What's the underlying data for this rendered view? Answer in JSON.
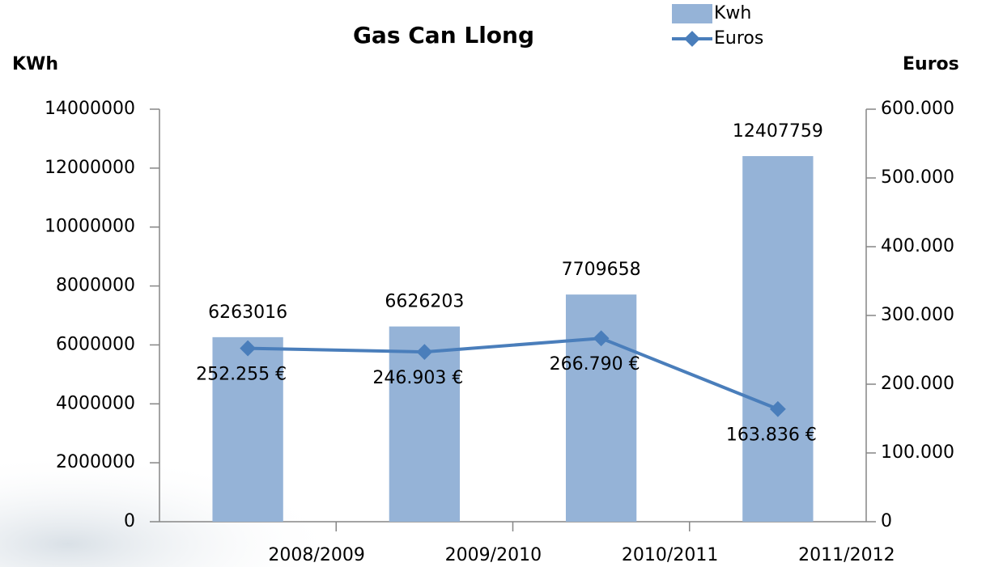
{
  "chart_data": {
    "type": "bar-line",
    "title": "Gas Can Llong",
    "y_label": "KWh",
    "y2_label": "Euros",
    "categories": [
      "2008/2009",
      "2009/2010",
      "2010/2011",
      "2011/2012"
    ],
    "series": [
      {
        "name": "Kwh",
        "type": "bar",
        "color": "#95b3d7",
        "values": [
          6263016,
          6626203,
          7709658,
          12407759
        ]
      },
      {
        "name": "Euros",
        "type": "line",
        "axis": "y2",
        "color": "#4a7ebb",
        "values": [
          252255,
          246903,
          266790,
          163836
        ],
        "value_labels": [
          "252.255 €",
          "246.903 €",
          "266.790 €",
          "163.836 €"
        ]
      }
    ],
    "ylim": [
      0,
      14000000
    ],
    "yticks": [
      0,
      2000000,
      4000000,
      6000000,
      8000000,
      10000000,
      12000000,
      14000000
    ],
    "y2lim": [
      0,
      600000
    ],
    "y2ticks": [
      0,
      {
        "value": 100000,
        "label": "100.000"
      },
      {
        "value": 200000,
        "label": "200.000"
      },
      {
        "value": 300000,
        "label": "300.000"
      },
      {
        "value": 400000,
        "label": "400.000"
      },
      {
        "value": 500000,
        "label": "500.000"
      },
      {
        "value": 600000,
        "label": "600.000"
      }
    ],
    "legend": "top-right"
  }
}
